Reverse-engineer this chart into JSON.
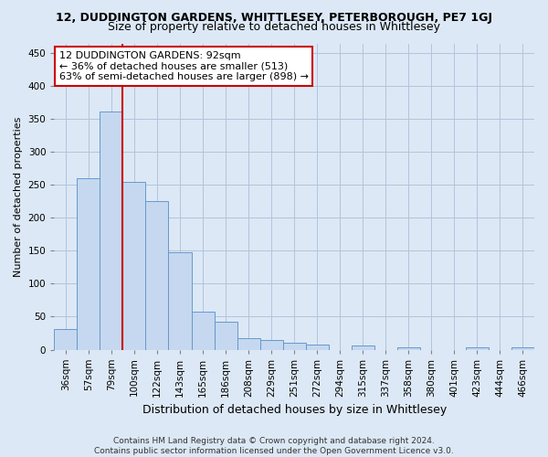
{
  "title": "12, DUDDINGTON GARDENS, WHITTLESEY, PETERBOROUGH, PE7 1GJ",
  "subtitle": "Size of property relative to detached houses in Whittlesey",
  "xlabel": "Distribution of detached houses by size in Whittlesey",
  "ylabel": "Number of detached properties",
  "categories": [
    "36sqm",
    "57sqm",
    "79sqm",
    "100sqm",
    "122sqm",
    "143sqm",
    "165sqm",
    "186sqm",
    "208sqm",
    "229sqm",
    "251sqm",
    "272sqm",
    "294sqm",
    "315sqm",
    "337sqm",
    "358sqm",
    "380sqm",
    "401sqm",
    "423sqm",
    "444sqm",
    "466sqm"
  ],
  "values": [
    31,
    260,
    362,
    255,
    225,
    148,
    57,
    43,
    17,
    14,
    10,
    8,
    0,
    6,
    0,
    3,
    0,
    0,
    3,
    0,
    3
  ],
  "bar_color": "#c5d8f0",
  "bar_edge_color": "#6699cc",
  "vline_x_idx": 2.5,
  "vline_color": "#cc0000",
  "annotation_text": "12 DUDDINGTON GARDENS: 92sqm\n← 36% of detached houses are smaller (513)\n63% of semi-detached houses are larger (898) →",
  "annotation_box_color": "#ffffff",
  "annotation_box_edge": "#cc0000",
  "ylim": [
    0,
    465
  ],
  "yticks": [
    0,
    50,
    100,
    150,
    200,
    250,
    300,
    350,
    400,
    450
  ],
  "grid_color": "#b0c4de",
  "bg_color": "#dce8f5",
  "footer": "Contains HM Land Registry data © Crown copyright and database right 2024.\nContains public sector information licensed under the Open Government Licence v3.0.",
  "title_fontsize": 9,
  "subtitle_fontsize": 9,
  "ylabel_fontsize": 8,
  "xlabel_fontsize": 9,
  "tick_fontsize": 7.5,
  "footer_fontsize": 6.5
}
